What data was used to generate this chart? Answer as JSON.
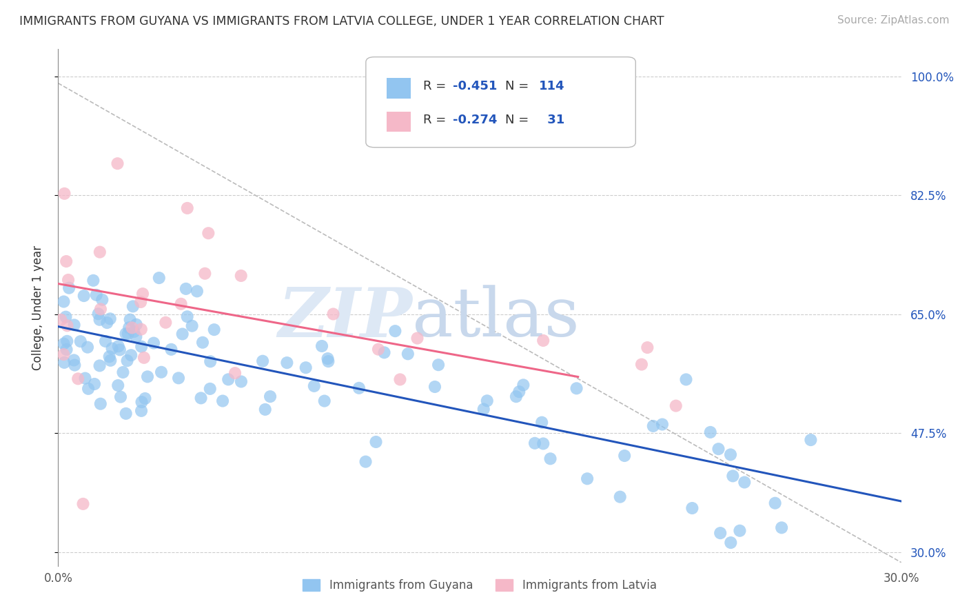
{
  "title": "IMMIGRANTS FROM GUYANA VS IMMIGRANTS FROM LATVIA COLLEGE, UNDER 1 YEAR CORRELATION CHART",
  "source": "Source: ZipAtlas.com",
  "ylabel": "College, Under 1 year",
  "xlim": [
    0.0,
    0.3
  ],
  "ylim": [
    0.28,
    1.04
  ],
  "xticks": [
    0.0,
    0.3
  ],
  "xtick_labels": [
    "0.0%",
    "30.0%"
  ],
  "yticks": [
    0.3,
    0.475,
    0.65,
    0.825,
    1.0
  ],
  "ytick_labels": [
    "30.0%",
    "47.5%",
    "65.0%",
    "82.5%",
    "100.0%"
  ],
  "grid_color": "#cccccc",
  "background_color": "#ffffff",
  "legend_label1": "Immigrants from Guyana",
  "legend_label2": "Immigrants from Latvia",
  "blue_color": "#92C5F0",
  "blue_line_color": "#2255BB",
  "pink_color": "#F5B8C8",
  "pink_line_color": "#EE6688",
  "title_fontsize": 12.5,
  "source_fontsize": 11,
  "guyana_trend_x": [
    0.0,
    0.3
  ],
  "guyana_trend_y": [
    0.632,
    0.375
  ],
  "latvia_trend_x": [
    0.0,
    0.185
  ],
  "latvia_trend_y": [
    0.695,
    0.558
  ],
  "dashed_trend_x": [
    0.0,
    0.3
  ],
  "dashed_trend_y": [
    0.99,
    0.285
  ]
}
